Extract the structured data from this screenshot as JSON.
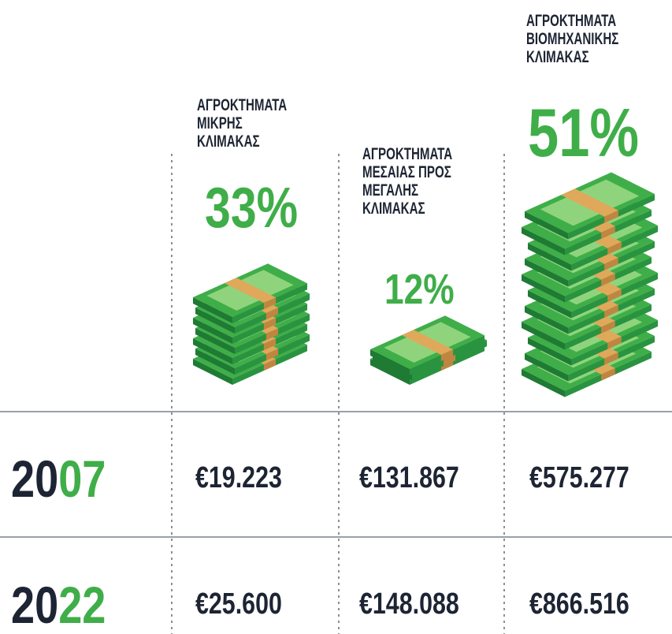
{
  "columns": [
    {
      "label": [
        "ΑΓΡΟΚΤΗΜΑΤΑ",
        "ΜΙΚΡΗΣ",
        "ΚΛΙΜΑΚΑΣ"
      ],
      "share": "33%"
    },
    {
      "label": [
        "ΑΓΡΟΚΤΗΜΑΤΑ",
        "ΜΕΣΑΙΑΣ ΠΡΟΣ",
        "ΜΕΓΑΛΗΣ",
        "ΚΛΙΜΑΚΑΣ"
      ],
      "share": "12%"
    },
    {
      "label": [
        "ΑΓΡΟΚΤΗΜΑΤΑ",
        "ΒΙΟΜΗΧΑΝΙΚΗΣ",
        "ΚΛΙΜΑΚΑΣ"
      ],
      "share": "51%"
    }
  ],
  "rows": [
    {
      "year": {
        "prefix": "20",
        "suffix": "07"
      },
      "values": [
        "€19.223",
        "€131.867",
        "€575.277"
      ]
    },
    {
      "year": {
        "prefix": "20",
        "suffix": "22"
      },
      "values": [
        "€25.600",
        "€148.088",
        "€866.516"
      ]
    }
  ]
}
